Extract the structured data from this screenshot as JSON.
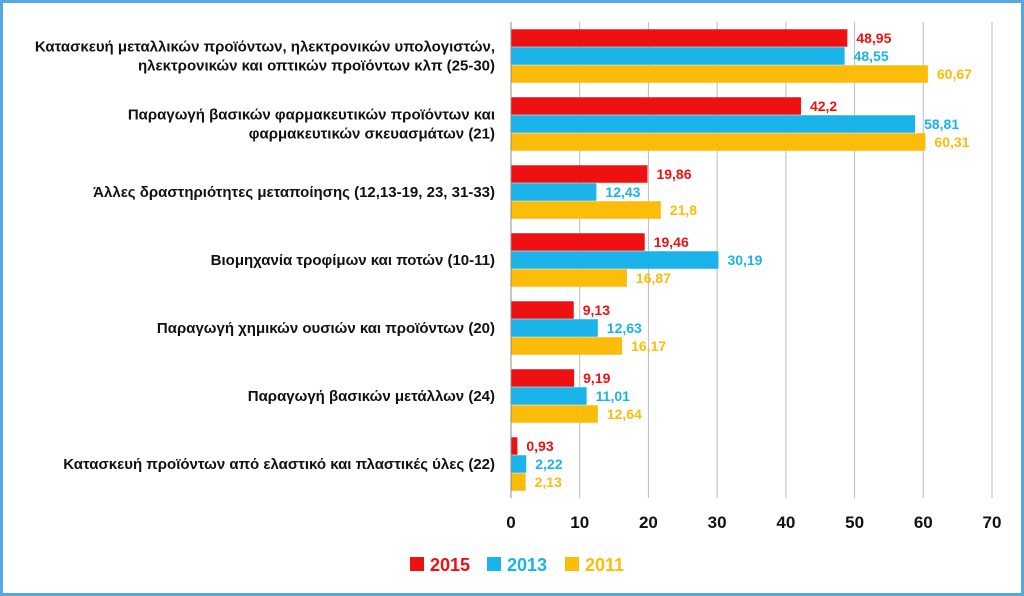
{
  "chart_data": {
    "type": "bar",
    "orientation": "horizontal",
    "categories": [
      [
        "Κατασκευή μεταλλικών προϊόντων, ηλεκτρονικών υπολογιστών,",
        "ηλεκτρονικών και οπτικών προϊόντων κλπ (25-30)"
      ],
      [
        "Παραγωγή βασικών φαρμακευτικών προϊόντων και",
        "φαρμακευτικών σκευασμάτων (21)"
      ],
      [
        "Άλλες δραστηριότητες μεταποίησης (12,13-19, 23, 31-33)"
      ],
      [
        "Βιομηχανία τροφίμων και ποτών (10-11)"
      ],
      [
        "Παραγωγή χημικών ουσιών και προϊόντων (20)"
      ],
      [
        "Παραγωγή βασικών μετάλλων (24)"
      ],
      [
        "Κατασκευή προϊόντων από ελαστικό και πλαστικές ύλες (22)"
      ]
    ],
    "series": [
      {
        "name": "2015",
        "color": "#ee1111",
        "values": [
          48.95,
          42.2,
          19.86,
          19.46,
          9.13,
          9.19,
          0.93
        ],
        "labels": [
          "48,95",
          "42,2",
          "19,86",
          "19,46",
          "9,13",
          "9,19",
          "0,93"
        ]
      },
      {
        "name": "2013",
        "color": "#1ab4ea",
        "values": [
          48.55,
          58.81,
          12.43,
          30.19,
          12.63,
          11.01,
          2.22
        ],
        "labels": [
          "48,55",
          "58,81",
          "12,43",
          "30,19",
          "12,63",
          "11,01",
          "2,22"
        ]
      },
      {
        "name": "2011",
        "color": "#fcbc0a",
        "values": [
          60.67,
          60.31,
          21.8,
          16.87,
          16.17,
          12.64,
          2.13
        ],
        "labels": [
          "60,67",
          "60,31",
          "21,8",
          "16,87",
          "16,17",
          "12,64",
          "2,13"
        ]
      }
    ],
    "xlim": [
      0,
      70
    ],
    "xticks": [
      0,
      10,
      20,
      30,
      40,
      50,
      60,
      70
    ],
    "grid": true,
    "legend": "bottom",
    "title": "",
    "xlabel": "",
    "ylabel": ""
  }
}
